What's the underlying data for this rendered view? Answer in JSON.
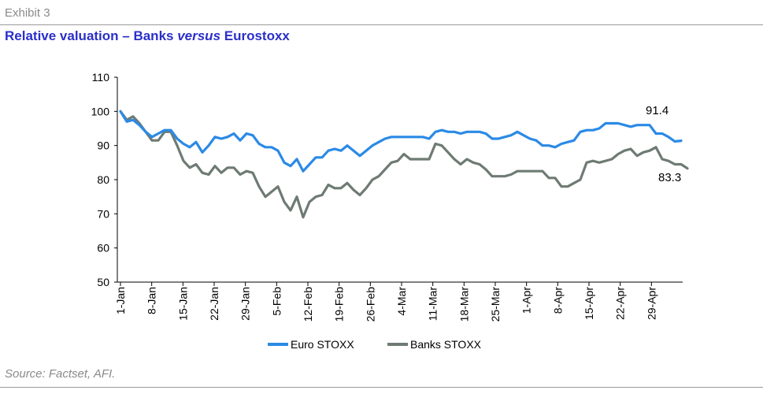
{
  "exhibit": "Exhibit 3",
  "title": {
    "part1": "Relative valuation – Banks ",
    "part2": "versus",
    "part3": " Eurostoxx"
  },
  "source": "Source: Factset, AFI.",
  "colors": {
    "euro": "#2b8ae6",
    "banks": "#6e7b73",
    "title": "#2a2fc9"
  },
  "chart_data": {
    "type": "line",
    "ylim": [
      50,
      110
    ],
    "yticks": [
      50,
      60,
      70,
      80,
      90,
      100,
      110
    ],
    "xticklabels": [
      "1-Jan",
      "8-Jan",
      "15-Jan",
      "22-Jan",
      "29-Jan",
      "5-Feb",
      "12-Feb",
      "19-Feb",
      "26-Feb",
      "4-Mar",
      "11-Mar",
      "18-Mar",
      "25-Mar",
      "1-Apr",
      "8-Apr",
      "15-Apr",
      "22-Apr",
      "29-Apr"
    ],
    "grid": false,
    "legend": "bottom",
    "series": [
      {
        "name": "Euro STOXX",
        "color": "#2b8ae6",
        "values": [
          100,
          97,
          97.5,
          96,
          94,
          92.5,
          93.5,
          94.5,
          94.5,
          92,
          90.5,
          89.5,
          91,
          88,
          90,
          92.5,
          92,
          92.5,
          93.5,
          91.5,
          93.5,
          93,
          90.5,
          89.5,
          89.5,
          88.5,
          85,
          84,
          86,
          82.5,
          84.5,
          86.5,
          86.5,
          88.5,
          89,
          88.5,
          90,
          88.5,
          87,
          88.5,
          90,
          91,
          92,
          92.5,
          92.5,
          92.5,
          92.5,
          92.5,
          92.5,
          92,
          94,
          94.5,
          94,
          94,
          93.5,
          94,
          94,
          94,
          93.5,
          92,
          92,
          92.5,
          93,
          94,
          93,
          92,
          91.5,
          90,
          90,
          89.5,
          90.5,
          91,
          91.5,
          94,
          94.5,
          94.5,
          95,
          96.5,
          96.5,
          96.5,
          96,
          95.5,
          96,
          96,
          96,
          93.5,
          93.5,
          92.5,
          91.2,
          91.4
        ]
      },
      {
        "name": "Banks STOXX",
        "color": "#6e7b73",
        "values": [
          100,
          97.5,
          98.5,
          96.5,
          94,
          91.5,
          91.5,
          94,
          94,
          90,
          85.5,
          83.5,
          84.5,
          82,
          81.5,
          84,
          82,
          83.5,
          83.5,
          81.5,
          82.5,
          82,
          78,
          75,
          76.5,
          78,
          73.5,
          71,
          75,
          69,
          73.5,
          75,
          75.5,
          78.5,
          77.5,
          77.5,
          79,
          77,
          75.5,
          77.5,
          80,
          81,
          83,
          85,
          85.5,
          87.5,
          86,
          86,
          86,
          86,
          90.5,
          90,
          88,
          86,
          84.5,
          86,
          85,
          84.5,
          83,
          81,
          81,
          81,
          81.5,
          82.5,
          82.5,
          82.5,
          82.5,
          82.5,
          80.5,
          80.5,
          78,
          78,
          79,
          80,
          85,
          85.5,
          85,
          85.5,
          86,
          87.5,
          88.5,
          89,
          87,
          88,
          88.5,
          89.5,
          86,
          85.5,
          84.5,
          84.5,
          83.3
        ]
      }
    ],
    "annotations": {
      "euro_last": "91.4",
      "banks_last": "83.3"
    }
  }
}
